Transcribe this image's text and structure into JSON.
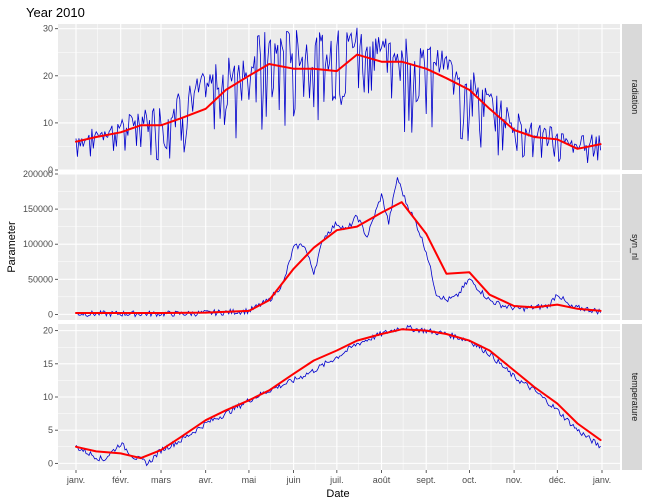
{
  "chart_data": {
    "type": "line",
    "title": "Year 2010",
    "xlabel": "Date",
    "ylabel": "Parameter",
    "grid": true,
    "x_ticks": [
      "janv.",
      "févr.",
      "mars",
      "avr.",
      "mai",
      "juin",
      "juil.",
      "août",
      "sept.",
      "oct.",
      "nov.",
      "déc.",
      "janv."
    ],
    "x_range": [
      "2010-01-01",
      "2011-01-01"
    ],
    "colors": {
      "raw": "#0000cc",
      "smooth": "#ff0000",
      "panel_bg": "#ebebeb",
      "strip_bg": "#d9d9d9",
      "grid": "#ffffff"
    },
    "facets": [
      {
        "strip": "radiation",
        "ylim": [
          0,
          31
        ],
        "y_ticks": [
          0,
          10,
          20,
          30
        ],
        "raw": {
          "x": [
            "2010-01-01",
            "2010-01-15",
            "2010-02-01",
            "2010-02-15",
            "2010-03-01",
            "2010-03-15",
            "2010-04-01",
            "2010-04-15",
            "2010-05-01",
            "2010-05-15",
            "2010-06-01",
            "2010-06-15",
            "2010-07-01",
            "2010-07-15",
            "2010-08-01",
            "2010-08-15",
            "2010-09-01",
            "2010-09-15",
            "2010-10-01",
            "2010-10-15",
            "2010-11-01",
            "2010-11-15",
            "2010-12-01",
            "2010-12-15",
            "2010-12-31"
          ],
          "y": [
            5,
            7,
            8,
            10,
            9,
            12,
            15,
            17,
            19,
            22,
            22,
            21,
            22,
            25,
            24,
            23,
            22,
            20,
            17,
            12,
            9,
            7,
            6,
            4,
            6
          ],
          "low": [
            2,
            3,
            3,
            2,
            2,
            3,
            4,
            5,
            4,
            6,
            8,
            10,
            13,
            10,
            9,
            8,
            7,
            5,
            4,
            3,
            2,
            2,
            1,
            1,
            2
          ],
          "high": [
            8,
            9,
            11,
            13,
            14,
            17,
            21,
            24,
            28,
            30,
            30,
            29,
            30,
            31,
            29,
            29,
            27,
            25,
            22,
            17,
            13,
            10,
            9,
            7,
            9
          ]
        },
        "smooth": {
          "x": [
            "2010-01-01",
            "2010-01-15",
            "2010-02-01",
            "2010-02-15",
            "2010-03-01",
            "2010-03-15",
            "2010-04-01",
            "2010-04-15",
            "2010-05-01",
            "2010-05-15",
            "2010-06-01",
            "2010-06-15",
            "2010-07-01",
            "2010-07-15",
            "2010-08-01",
            "2010-08-15",
            "2010-09-01",
            "2010-09-15",
            "2010-10-01",
            "2010-10-15",
            "2010-11-01",
            "2010-11-15",
            "2010-12-01",
            "2010-12-15",
            "2010-12-31"
          ],
          "y": [
            6,
            7,
            8,
            9.5,
            9.5,
            11,
            13,
            17,
            20,
            22.5,
            21.5,
            21.5,
            21,
            24.5,
            23,
            23,
            21.5,
            19.5,
            17,
            13,
            8.5,
            7,
            6.5,
            4.5,
            5.5
          ]
        }
      },
      {
        "strip": "syn_nl",
        "ylim": [
          -8000,
          200000
        ],
        "y_ticks": [
          0,
          50000,
          100000,
          150000,
          200000
        ],
        "raw": {
          "x": [
            "2010-01-01",
            "2010-01-15",
            "2010-02-01",
            "2010-02-15",
            "2010-03-01",
            "2010-03-15",
            "2010-04-01",
            "2010-04-15",
            "2010-05-01",
            "2010-05-15",
            "2010-05-25",
            "2010-06-01",
            "2010-06-08",
            "2010-06-15",
            "2010-06-22",
            "2010-07-01",
            "2010-07-08",
            "2010-07-15",
            "2010-07-22",
            "2010-08-01",
            "2010-08-06",
            "2010-08-12",
            "2010-08-18",
            "2010-08-25",
            "2010-09-01",
            "2010-09-08",
            "2010-09-15",
            "2010-09-22",
            "2010-10-01",
            "2010-10-08",
            "2010-10-15",
            "2010-10-25",
            "2010-11-05",
            "2010-11-15",
            "2010-11-25",
            "2010-12-01",
            "2010-12-10",
            "2010-12-20",
            "2010-12-31"
          ],
          "y": [
            1000,
            1000,
            1000,
            1000,
            1000,
            1000,
            2000,
            3000,
            5000,
            20000,
            45000,
            95000,
            100000,
            60000,
            110000,
            130000,
            120000,
            140000,
            110000,
            170000,
            130000,
            195000,
            160000,
            130000,
            90000,
            30000,
            20000,
            25000,
            50000,
            35000,
            20000,
            12000,
            8000,
            10000,
            12000,
            30000,
            10000,
            8000,
            4000
          ]
        },
        "smooth": {
          "x": [
            "2010-01-01",
            "2010-02-01",
            "2010-03-01",
            "2010-04-01",
            "2010-05-01",
            "2010-05-15",
            "2010-06-01",
            "2010-06-15",
            "2010-07-01",
            "2010-07-15",
            "2010-08-01",
            "2010-08-15",
            "2010-09-01",
            "2010-09-15",
            "2010-10-01",
            "2010-10-15",
            "2010-11-01",
            "2010-11-15",
            "2010-12-01",
            "2010-12-15",
            "2010-12-31"
          ],
          "y": [
            2000,
            2000,
            2000,
            2500,
            5000,
            20000,
            65000,
            95000,
            120000,
            125000,
            145000,
            160000,
            115000,
            58000,
            60000,
            28000,
            12000,
            10000,
            14000,
            8000,
            5000
          ]
        }
      },
      {
        "strip": "temperature",
        "ylim": [
          -1,
          21
        ],
        "y_ticks": [
          0,
          5,
          10,
          15,
          20
        ],
        "raw": {
          "x": [
            "2010-01-01",
            "2010-01-10",
            "2010-01-20",
            "2010-02-01",
            "2010-02-10",
            "2010-02-20",
            "2010-03-01",
            "2010-03-15",
            "2010-04-01",
            "2010-04-15",
            "2010-05-01",
            "2010-05-15",
            "2010-06-01",
            "2010-06-15",
            "2010-07-01",
            "2010-07-15",
            "2010-08-01",
            "2010-08-15",
            "2010-09-01",
            "2010-09-15",
            "2010-10-01",
            "2010-10-15",
            "2010-11-01",
            "2010-11-15",
            "2010-12-01",
            "2010-12-15",
            "2010-12-31"
          ],
          "y": [
            2.5,
            1.5,
            0.5,
            3,
            1,
            0,
            2,
            3.5,
            6,
            7.5,
            9.5,
            11,
            12.5,
            14,
            16,
            18,
            19.5,
            20.5,
            20,
            19.5,
            18.5,
            16.5,
            13,
            11,
            8,
            5,
            2.5
          ]
        },
        "smooth": {
          "x": [
            "2010-01-01",
            "2010-01-15",
            "2010-02-01",
            "2010-02-15",
            "2010-03-01",
            "2010-03-15",
            "2010-04-01",
            "2010-04-15",
            "2010-05-01",
            "2010-05-15",
            "2010-06-01",
            "2010-06-15",
            "2010-07-01",
            "2010-07-15",
            "2010-08-01",
            "2010-08-15",
            "2010-09-01",
            "2010-09-15",
            "2010-10-01",
            "2010-10-15",
            "2010-11-01",
            "2010-11-15",
            "2010-12-01",
            "2010-12-15",
            "2010-12-31"
          ],
          "y": [
            2.5,
            1.8,
            1.5,
            0.8,
            2,
            4,
            6.5,
            8,
            9.5,
            11,
            13.5,
            15.5,
            17,
            18.5,
            19.5,
            20.2,
            20,
            19.5,
            18.5,
            17,
            14,
            11.5,
            9,
            6,
            3.5
          ]
        }
      }
    ]
  }
}
